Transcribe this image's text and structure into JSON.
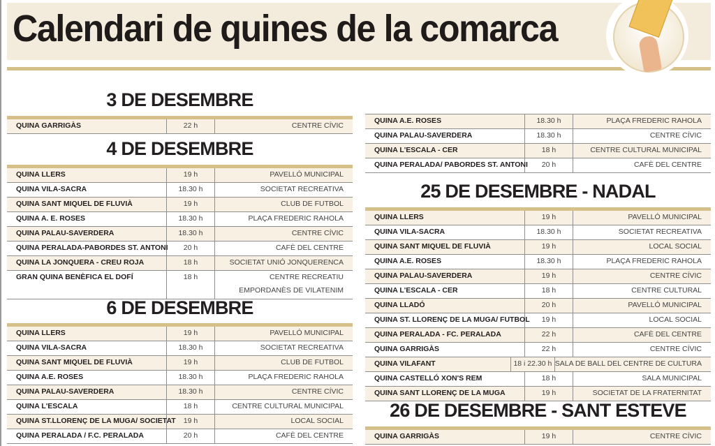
{
  "header": {
    "title": "Calendari de quines de la comarca"
  },
  "sections": [
    {
      "heading": "3 DE DESEMBRE",
      "rows": [
        [
          "QUINA GARRIGÀS",
          "22 h",
          "CENTRE CÍVIC"
        ]
      ]
    },
    {
      "heading": "4 DE DESEMBRE",
      "rows": [
        [
          "QUINA LLERS",
          "19 h",
          "PAVELLÓ MUNICIPAL"
        ],
        [
          "QUINA VILA-SACRA",
          "18.30 h",
          "SOCIETAT RECREATIVA"
        ],
        [
          "QUINA SANT MIQUEL DE FLUVIÀ",
          "19 h",
          "CLUB DE FUTBOL"
        ],
        [
          "QUINA A. E. ROSES",
          "18.30 h",
          "PLAÇA FREDERIC RAHOLA"
        ],
        [
          "QUINA PALAU-SAVERDERA",
          "18.30 h",
          "CENTRE CÍVIC"
        ],
        [
          "QUINA PERALADA-PABORDES ST. ANTONI",
          "20 h",
          "CAFÈ DEL CENTRE"
        ],
        [
          "QUINA LA JONQUERA - CREU ROJA",
          "18 h",
          "SOCIETAT UNIÓ JONQUERENCA"
        ],
        [
          "GRAN QUINA BENÈFICA EL DOFÍ",
          "18 h",
          "CENTRE RECREATIU EMPORDANÈS DE VILATENIM"
        ]
      ]
    },
    {
      "heading": "6 DE DESEMBRE",
      "rows": [
        [
          "QUINA LLERS",
          "19 h",
          "PAVELLÓ MUNICIPAL"
        ],
        [
          "QUINA VILA-SACRA",
          "18.30 h",
          "SOCIETAT RECREATIVA"
        ],
        [
          "QUINA SANT MIQUEL DE FLUVIÀ",
          "19 h",
          "CLUB DE FUTBOL"
        ],
        [
          "QUINA A.E. ROSES",
          "18.30 h",
          "PLAÇA FREDERIC RAHOLA"
        ],
        [
          "QUINA PALAU-SAVERDERA",
          "18.30 h",
          "CENTRE CÍVIC"
        ],
        [
          "QUINA L'ESCALA",
          "18 h",
          "CENTRE CULTURAL MUNICIPAL"
        ],
        [
          "QUINA ST.LLORENÇ DE LA MUGA/ SOCIETAT",
          "19 h",
          "LOCAL SOCIAL"
        ],
        [
          "QUINA PERALADA / F.C. PERALADA",
          "20 h",
          "CAFÈ DEL CENTRE"
        ]
      ]
    },
    {
      "heading": "",
      "rows": [
        [
          "QUINA A.E. ROSES",
          "18.30 h",
          "PLAÇA FREDERIC RAHOLA"
        ],
        [
          "QUINA PALAU-SAVERDERA",
          "18.30 h",
          "CENTRE CÍVIC"
        ],
        [
          "QUINA L'ESCALA - CER",
          "18 h",
          "CENTRE CULTURAL MUNICIPAL"
        ],
        [
          "QUINA PERALADA/ PABORDES ST. ANTONI",
          "20 h",
          "CAFÈ DEL CENTRE"
        ]
      ]
    },
    {
      "heading": "25 DE DESEMBRE  - NADAL",
      "rows": [
        [
          "QUINA LLERS",
          "19 h",
          "PAVELLÓ MUNICIPAL"
        ],
        [
          "QUINA VILA-SACRA",
          "18.30 h",
          "SOCIETAT RECREATIVA"
        ],
        [
          "QUINA SANT MIQUEL DE FLUVIÀ",
          "19 h",
          "LOCAL SOCIAL"
        ],
        [
          "QUINA A.E. ROSES",
          "18.30 h",
          "PLAÇA FREDERIC RAHOLA"
        ],
        [
          "QUINA PALAU-SAVERDERA",
          "19 h",
          "CENTRE CÍVIC"
        ],
        [
          "QUINA L'ESCALA - CER",
          "18 h",
          "CENTRE CULTURAL"
        ],
        [
          "QUINA LLADÓ",
          "20 h",
          "PAVELLÓ MUNICIPAL"
        ],
        [
          "QUINA ST. LLORENÇ DE LA MUGA/ FUTBOL",
          "19 h",
          "LOCAL SOCIAL"
        ],
        [
          "QUINA PERALADA - FC. PERALADA",
          "22 h",
          "CAFÈ DEL CENTRE"
        ],
        [
          "QUINA GARRIGÀS",
          "22 h",
          "CENTRE CÍVIC"
        ],
        [
          "QUINA VILAFANT",
          "18 i 22.30 h",
          "SALA DE BALL DEL CENTRE DE CULTURA"
        ],
        [
          "QUINA CASTELLÓ XON'S REM",
          "18 h",
          "SALA MUNICIPAL"
        ],
        [
          "QUINA SANT LLORENÇ DE LA MUGA",
          "19 h",
          "SOCIETAT DE LA FRATERNITAT"
        ]
      ]
    },
    {
      "heading": "26 DE DESEMBRE - SANT ESTEVE",
      "rows": [
        [
          "QUINA GARRIGÀS",
          "19 h",
          "CENTRE CÍVIC"
        ]
      ]
    }
  ]
}
